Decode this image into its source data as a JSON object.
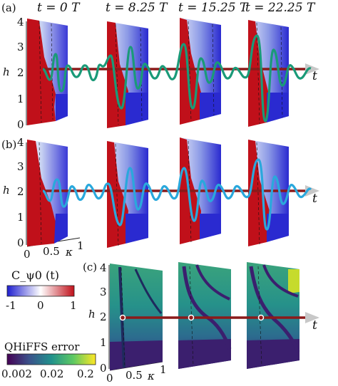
{
  "panel_labels": [
    "(a)",
    "(b)",
    "(c)"
  ],
  "time_labels": [
    "t = 0 T",
    "t = 8.25 T",
    "t = 15.25 T",
    "t = 22.25 T"
  ],
  "axes": {
    "h_label": "h",
    "kappa_label": "κ",
    "t_label": "t",
    "h_ticks": [
      "0",
      "1",
      "2",
      "3",
      "4"
    ],
    "kappa_ticks": [
      "0",
      "0.5",
      "1"
    ]
  },
  "colorbar_c": {
    "label": "C_ψ0 (t)",
    "ticks": [
      "-1",
      "0",
      "1"
    ],
    "colors": [
      "#1f1fcf",
      "#ffffff",
      "#c0101a"
    ]
  },
  "colorbar_err": {
    "label": "QHiFFS error",
    "ticks": [
      "0.002",
      "0.02",
      "0.2"
    ],
    "colors": [
      "#440154",
      "#3b528b",
      "#21918c",
      "#5ec962",
      "#fde725"
    ]
  },
  "colors": {
    "signal_a": "#1a9a78",
    "signal_b": "#2aa8dc",
    "timeline": "#8b1a1a",
    "red": "#c0101a",
    "blue": "#2828d0"
  }
}
